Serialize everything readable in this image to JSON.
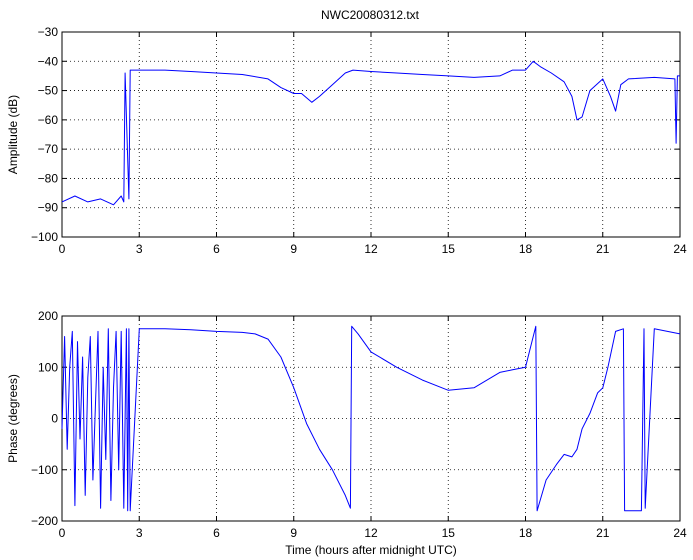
{
  "title": "NWC20080312.txt",
  "chart_data": [
    {
      "type": "line",
      "title": "NWC20080312.txt",
      "xlabel": "",
      "ylabel": "Amplitude (dB)",
      "xlim": [
        0,
        24
      ],
      "ylim": [
        -100,
        -30
      ],
      "xticks": [
        "0",
        "3",
        "6",
        "9",
        "12",
        "15",
        "18",
        "21",
        "24"
      ],
      "yticks": [
        "-100",
        "-90",
        "-80",
        "-70",
        "-60",
        "-50",
        "-40",
        "-30"
      ],
      "grid": true,
      "color": "#0000ff",
      "x": [
        0,
        0.5,
        1.0,
        1.5,
        2.0,
        2.3,
        2.4,
        2.45,
        2.6,
        2.65,
        3,
        4,
        5,
        6,
        7,
        8,
        8.5,
        9,
        9.3,
        9.7,
        10,
        10.5,
        11,
        11.3,
        12,
        13,
        14,
        15,
        16,
        17,
        17.5,
        18,
        18.3,
        18.6,
        19,
        19.5,
        19.8,
        20.0,
        20.2,
        20.5,
        21,
        21.3,
        21.5,
        21.7,
        22,
        23,
        23.8,
        23.85,
        23.9,
        24
      ],
      "y": [
        -88,
        -86,
        -88,
        -87,
        -89,
        -86,
        -88,
        -44,
        -87,
        -43,
        -43,
        -43,
        -43.5,
        -44,
        -44.5,
        -46,
        -49,
        -51,
        -51,
        -54,
        -52,
        -48,
        -44,
        -43,
        -43.5,
        -44,
        -44.5,
        -45,
        -45.5,
        -45,
        -43,
        -43,
        -40,
        -42,
        -44,
        -47,
        -52,
        -60,
        -59,
        -50,
        -46,
        -52,
        -57,
        -48,
        -46,
        -45.5,
        -46,
        -68,
        -45,
        -45
      ]
    },
    {
      "type": "line",
      "title": "",
      "xlabel": "Time (hours after midnight UTC)",
      "ylabel": "Phase (degrees)",
      "xlim": [
        0,
        24
      ],
      "ylim": [
        -200,
        200
      ],
      "xticks": [
        "0",
        "3",
        "6",
        "9",
        "12",
        "15",
        "18",
        "21",
        "24"
      ],
      "yticks": [
        "-200",
        "-100",
        "0",
        "100",
        "200"
      ],
      "grid": true,
      "color": "#0000ff",
      "x": [
        0,
        0.1,
        0.2,
        0.3,
        0.4,
        0.5,
        0.6,
        0.7,
        0.8,
        0.9,
        1.0,
        1.1,
        1.2,
        1.3,
        1.4,
        1.5,
        1.6,
        1.7,
        1.8,
        1.9,
        2.0,
        2.1,
        2.2,
        2.3,
        2.4,
        2.5,
        2.55,
        2.6,
        2.65,
        3,
        4,
        5,
        6,
        7,
        7.5,
        8,
        8.5,
        9,
        9.5,
        10,
        10.5,
        11,
        11.2,
        11.25,
        11.5,
        12,
        13,
        14,
        15,
        16,
        17,
        17.5,
        18,
        18.4,
        18.45,
        18.8,
        19.2,
        19.5,
        19.8,
        20.0,
        20.2,
        20.5,
        20.8,
        21.0,
        21.2,
        21.5,
        21.8,
        21.85,
        22.0,
        22.5,
        22.6,
        22.65,
        23,
        24
      ],
      "y": [
        -20,
        160,
        -60,
        100,
        170,
        -170,
        150,
        -40,
        120,
        -150,
        80,
        160,
        -120,
        30,
        170,
        -175,
        100,
        -80,
        175,
        -160,
        60,
        170,
        -100,
        170,
        -175,
        175,
        -180,
        175,
        -180,
        175,
        175,
        173,
        170,
        168,
        165,
        155,
        120,
        60,
        -10,
        -60,
        -100,
        -150,
        -175,
        180,
        165,
        130,
        100,
        75,
        55,
        60,
        90,
        95,
        100,
        180,
        -180,
        -120,
        -90,
        -70,
        -75,
        -60,
        -20,
        10,
        50,
        60,
        100,
        170,
        175,
        -180,
        -180,
        -180,
        175,
        -175,
        175,
        165
      ]
    }
  ]
}
